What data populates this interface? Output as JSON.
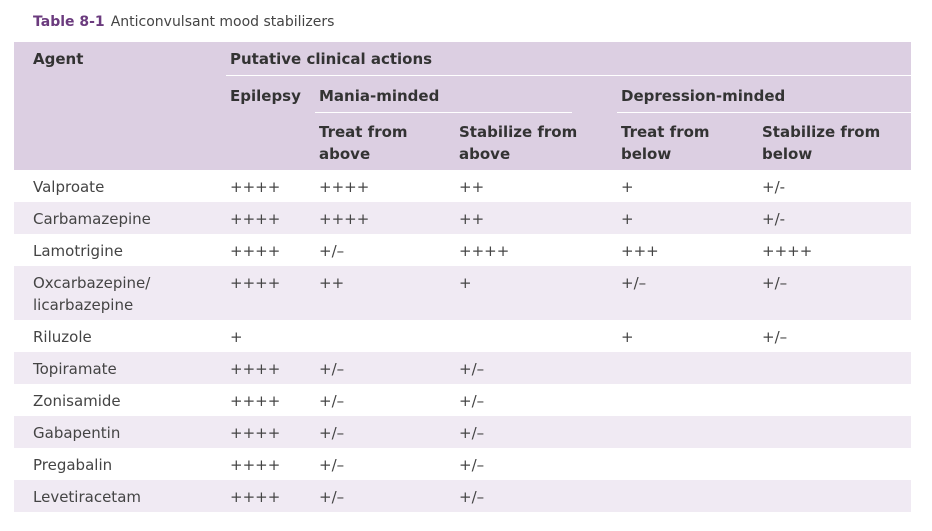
{
  "caption": {
    "label": "Table 8-1",
    "title": "Anticonvulsant mood stabilizers"
  },
  "header": {
    "agent": "Agent",
    "putative": "Putative clinical actions",
    "epilepsy": "Epilepsy",
    "mania": "Mania-minded",
    "depression": "Depression-minded",
    "treat_above_1": "Treat from",
    "treat_above_2": "above",
    "stab_above_1": "Stabilize from",
    "stab_above_2": "above",
    "treat_below_1": "Treat from",
    "treat_below_2": "below",
    "stab_below_1": "Stabilize from",
    "stab_below_2": "below"
  },
  "rows": [
    {
      "agent": "Valproate",
      "epilepsy": "++++",
      "mania_treat": "++++",
      "mania_stab": "++",
      "dep_treat": "+",
      "dep_stab": "+/-"
    },
    {
      "agent": "Carbamazepine",
      "epilepsy": "++++",
      "mania_treat": "++++",
      "mania_stab": "++",
      "dep_treat": "+",
      "dep_stab": "+/-"
    },
    {
      "agent": "Lamotrigine",
      "epilepsy": "++++",
      "mania_treat": "+/–",
      "mania_stab": "++++",
      "dep_treat": "+++",
      "dep_stab": "++++"
    },
    {
      "agent": "Oxcarbazepine/ licarbazepine",
      "epilepsy": "++++",
      "mania_treat": "++",
      "mania_stab": "+",
      "dep_treat": "+/–",
      "dep_stab": "+/–"
    },
    {
      "agent": "Riluzole",
      "epilepsy": "+",
      "mania_treat": "",
      "mania_stab": "",
      "dep_treat": "+",
      "dep_stab": "+/–"
    },
    {
      "agent": "Topiramate",
      "epilepsy": "++++",
      "mania_treat": "+/–",
      "mania_stab": "+/–",
      "dep_treat": "",
      "dep_stab": ""
    },
    {
      "agent": "Zonisamide",
      "epilepsy": "++++",
      "mania_treat": "+/–",
      "mania_stab": "+/–",
      "dep_treat": "",
      "dep_stab": ""
    },
    {
      "agent": "Gabapentin",
      "epilepsy": "++++",
      "mania_treat": "+/–",
      "mania_stab": "+/–",
      "dep_treat": "",
      "dep_stab": ""
    },
    {
      "agent": "Pregabalin",
      "epilepsy": "++++",
      "mania_treat": "+/–",
      "mania_stab": "+/–",
      "dep_treat": "",
      "dep_stab": ""
    },
    {
      "agent": "Levetiracetam",
      "epilepsy": "++++",
      "mania_treat": "+/–",
      "mania_stab": "+/–",
      "dep_treat": "",
      "dep_stab": ""
    }
  ]
}
